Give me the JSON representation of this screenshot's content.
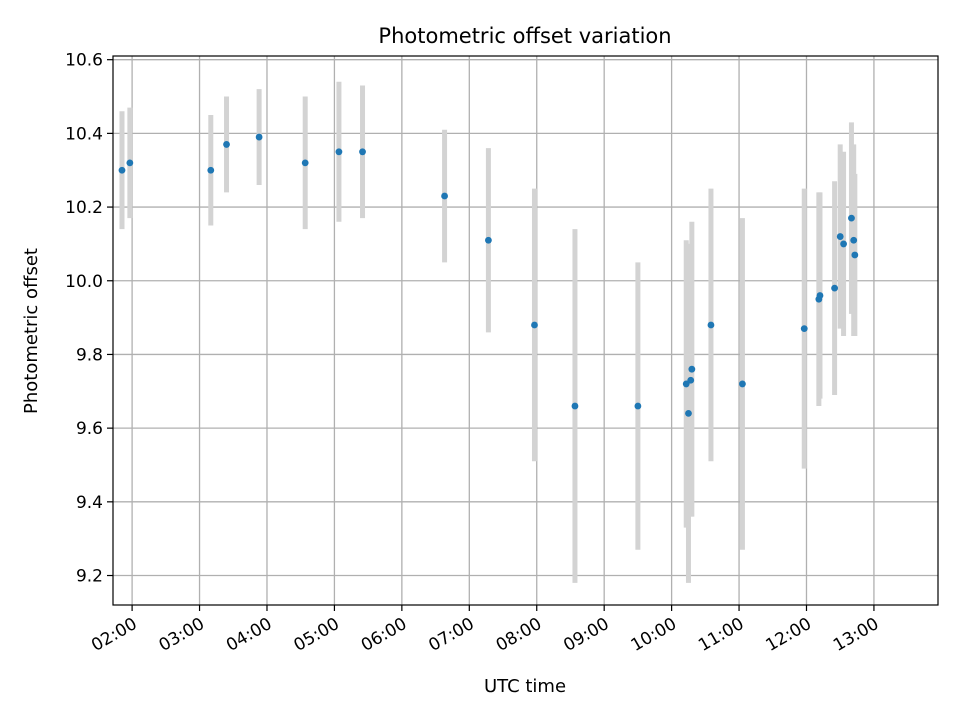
{
  "chart_data": {
    "type": "scatter",
    "title": "Photometric offset variation",
    "xlabel": "UTC time",
    "ylabel": "Photometric offset",
    "x_axis_kind": "time",
    "x_ticks": [
      "02:00",
      "03:00",
      "04:00",
      "05:00",
      "06:00",
      "07:00",
      "08:00",
      "09:00",
      "10:00",
      "11:00",
      "12:00",
      "13:00"
    ],
    "xlim": [
      "01:43",
      "13:57"
    ],
    "y_ticks": [
      9.2,
      9.4,
      9.6,
      9.8,
      10.0,
      10.2,
      10.4,
      10.6
    ],
    "ylim": [
      9.12,
      10.61
    ],
    "grid": true,
    "colors": {
      "points": "#1f77b4",
      "error_bars": "#d3d3d3",
      "grid": "#b0b0b0"
    },
    "series": [
      {
        "x": [
          "01:51",
          "01:58",
          "03:10",
          "03:24",
          "03:53",
          "04:34",
          "05:04",
          "05:25",
          "06:38",
          "07:17",
          "07:58",
          "08:34",
          "09:30",
          "10:13",
          "10:15",
          "10:17",
          "10:18",
          "10:35",
          "11:03",
          "11:58",
          "12:11",
          "12:12",
          "12:25",
          "12:30",
          "12:33",
          "12:40",
          "12:42",
          "12:43"
        ],
        "y": [
          10.3,
          10.32,
          10.3,
          10.37,
          10.39,
          10.32,
          10.35,
          10.35,
          10.23,
          10.11,
          9.88,
          9.66,
          9.66,
          9.72,
          9.64,
          9.73,
          9.76,
          9.88,
          9.72,
          9.87,
          9.95,
          9.96,
          9.98,
          10.12,
          10.1,
          10.17,
          10.11,
          10.07
        ],
        "yerr": [
          0.16,
          0.15,
          0.15,
          0.13,
          0.13,
          0.18,
          0.19,
          0.18,
          0.18,
          0.25,
          0.37,
          0.48,
          0.39,
          0.39,
          0.46,
          0.37,
          0.4,
          0.37,
          0.45,
          0.38,
          0.29,
          0.28,
          0.29,
          0.25,
          0.25,
          0.26,
          0.26,
          0.22
        ]
      }
    ]
  }
}
